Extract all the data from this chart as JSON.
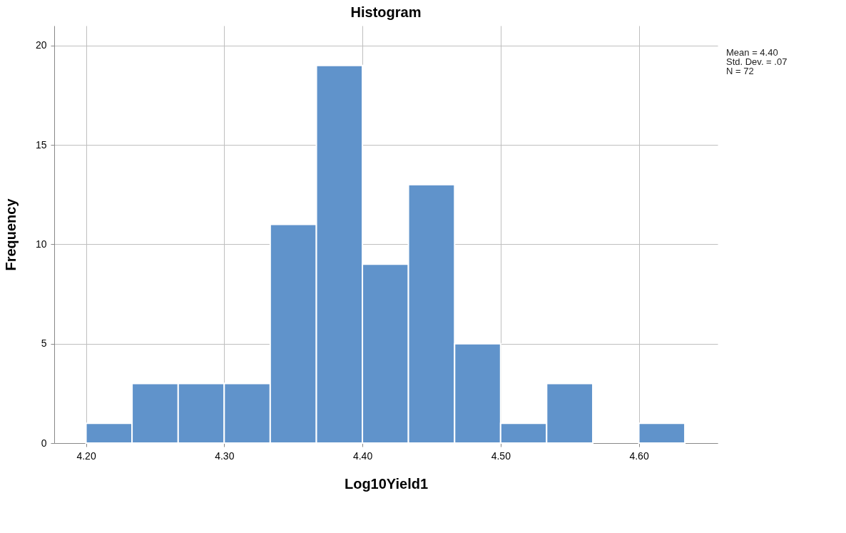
{
  "chart_data": {
    "type": "histogram",
    "title": "Histogram",
    "xlabel": "Log10Yield1",
    "ylabel": "Frequency",
    "bins": [
      4.2,
      4.2333,
      4.2667,
      4.3,
      4.3333,
      4.3667,
      4.4,
      4.4333,
      4.4667,
      4.5,
      4.5333,
      4.5667,
      4.6,
      4.6333
    ],
    "values": [
      1,
      3,
      3,
      3,
      11,
      19,
      9,
      13,
      5,
      1,
      3,
      0,
      1
    ],
    "color": "#6093cb",
    "xlim": [
      4.177,
      4.657
    ],
    "xticks": [
      {
        "value": 4.2,
        "label": "4.20"
      },
      {
        "value": 4.3,
        "label": "4.30"
      },
      {
        "value": 4.4,
        "label": "4.40"
      },
      {
        "value": 4.5,
        "label": "4.50"
      },
      {
        "value": 4.6,
        "label": "4.60"
      }
    ],
    "ylim": [
      0,
      21
    ],
    "yticks": [
      0,
      5,
      10,
      15,
      20
    ],
    "grid": true,
    "annotations": [
      "Mean = 4.40",
      "Std. Dev. = .07",
      "N = 72"
    ]
  }
}
